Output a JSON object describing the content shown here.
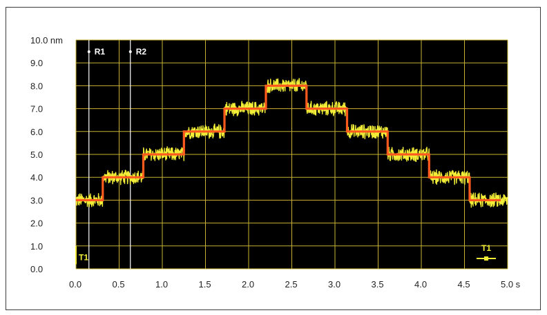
{
  "chart_data": {
    "type": "line",
    "y_unit": "nm",
    "x_unit": "s",
    "xlim": [
      0,
      5.0
    ],
    "ylim": [
      0,
      10.0
    ],
    "x_ticks": [
      "0.0",
      "0.5",
      "1.0",
      "1.5",
      "2.0",
      "2.5",
      "3.0",
      "3.5",
      "4.0",
      "4.5",
      "5.0 s"
    ],
    "y_ticks": [
      "0.0",
      "1.0",
      "2.0",
      "3.0",
      "4.0",
      "5.0",
      "6.0",
      "7.0",
      "8.0",
      "9.0",
      "10.0 nm"
    ],
    "grid": true,
    "background": "#000000",
    "colors": {
      "grid": "#c8b432",
      "noisy_signal": "#f2ee38",
      "step_fit": "#ff5a1e",
      "cursor": "#ffffff",
      "trigger": "#f2ee38"
    },
    "series": [
      {
        "x": [
          0.0,
          0.31,
          0.31,
          0.78,
          0.78,
          1.25,
          1.25,
          1.72,
          1.72,
          2.2,
          2.2,
          2.67,
          2.67,
          3.14,
          3.14,
          3.61,
          3.61,
          4.09,
          4.09,
          4.56,
          4.56,
          4.92
        ],
        "y": [
          3.0,
          3.0,
          4.0,
          4.0,
          5.0,
          5.0,
          6.0,
          6.0,
          7.0,
          7.0,
          8.0,
          8.0,
          7.0,
          7.0,
          6.0,
          6.0,
          5.0,
          5.0,
          4.0,
          4.0,
          3.0,
          3.0
        ],
        "noise_amplitude": 0.35
      }
    ],
    "cursors": [
      {
        "label": "R1",
        "x": 0.15
      },
      {
        "label": "R2",
        "x": 0.63
      }
    ],
    "trigger_labels": {
      "left": "T1",
      "right": "T1"
    }
  }
}
